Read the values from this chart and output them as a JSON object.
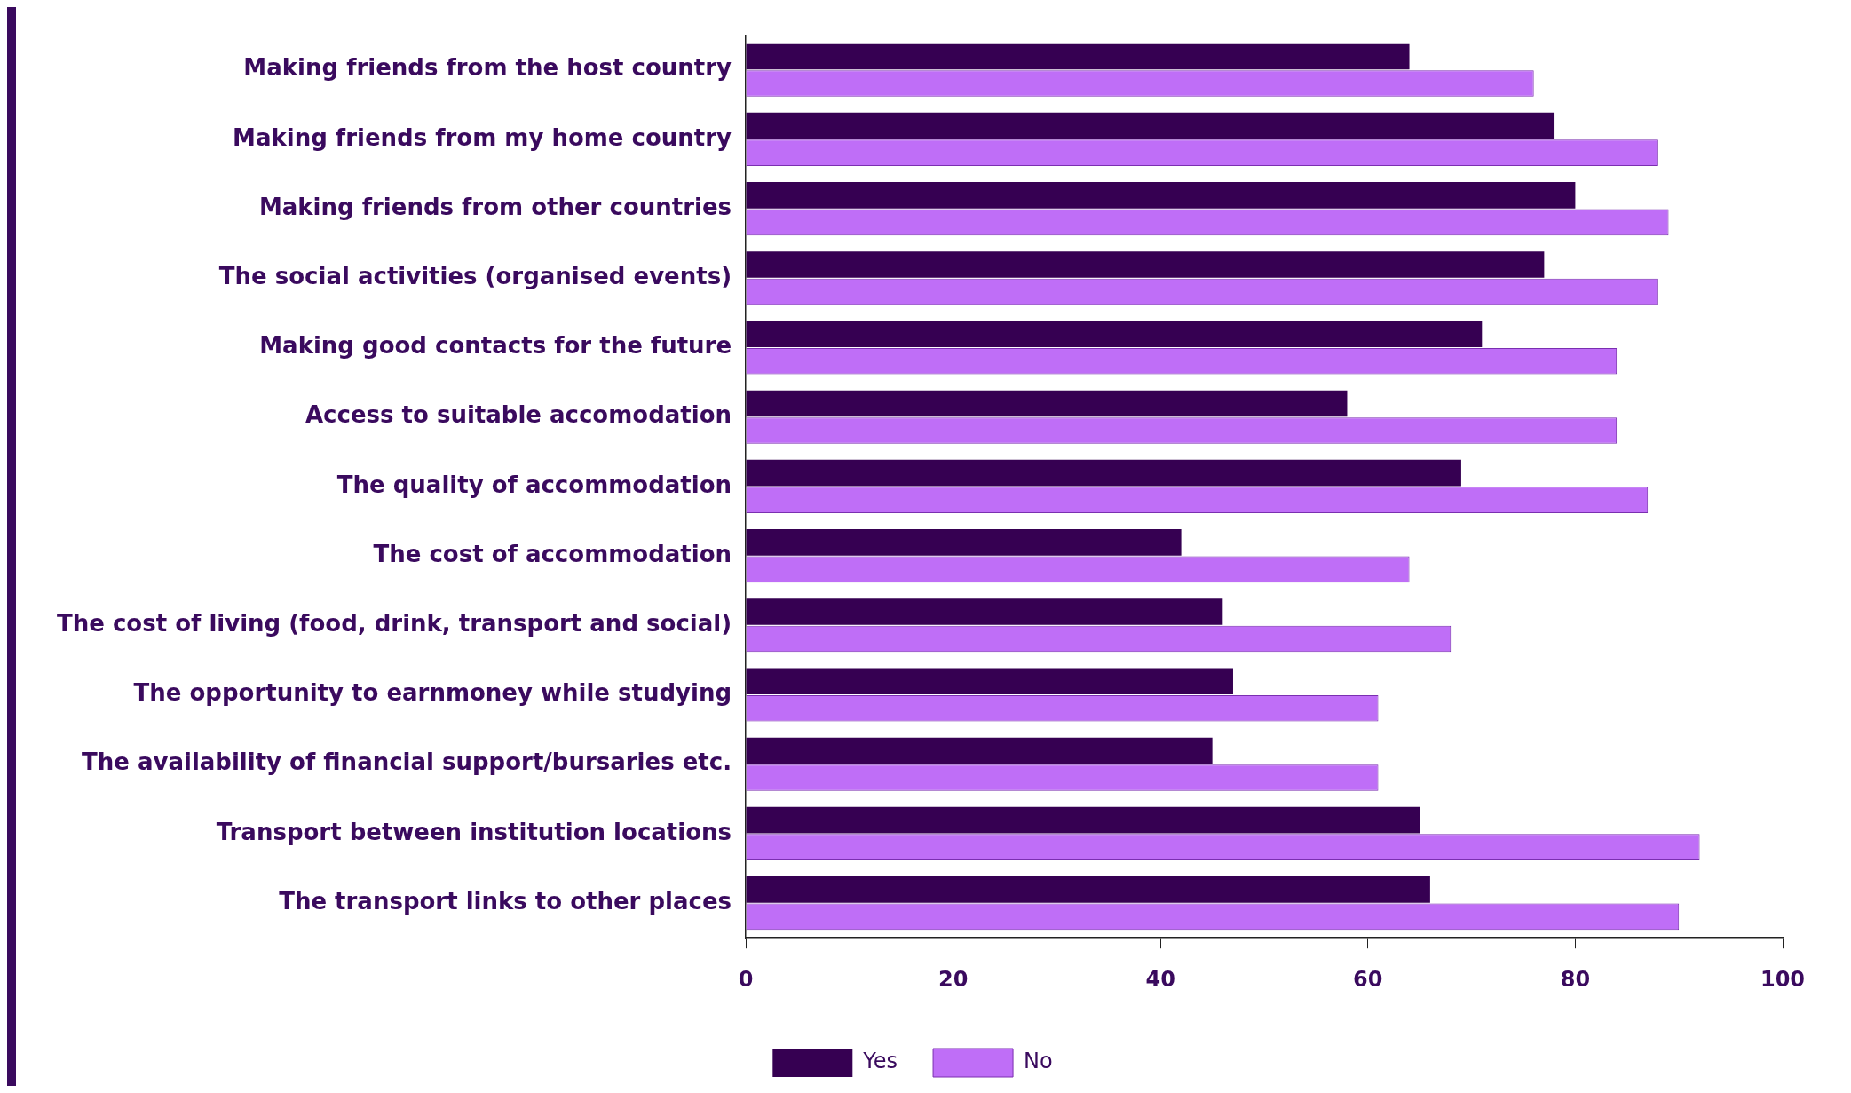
{
  "chart_data": {
    "type": "bar",
    "orientation": "horizontal",
    "categories": [
      "Making friends from the host country",
      "Making friends from my home country",
      "Making friends from other countries",
      "The social activities (organised events)",
      "Making good contacts for the future",
      "Access to suitable accomodation",
      "The quality of accommodation",
      "The cost of accommodation",
      "The cost of living (food, drink, transport and social)",
      "The opportunity to earnmoney while studying",
      "The availability of financial support/bursaries etc.",
      "Transport between institution locations",
      "The transport links to other places"
    ],
    "series": [
      {
        "name": "Yes",
        "color": "#360052",
        "values": [
          64,
          78,
          80,
          77,
          71,
          58,
          69,
          42,
          46,
          47,
          45,
          65,
          66
        ]
      },
      {
        "name": "No",
        "color": "#bf6ef7",
        "values": [
          76,
          88,
          89,
          88,
          84,
          84,
          87,
          64,
          68,
          61,
          61,
          92,
          90
        ]
      }
    ],
    "xlim": [
      0,
      100
    ],
    "xticks": [
      0,
      20,
      40,
      60,
      80,
      100
    ],
    "grid": false,
    "legend": "bottom"
  }
}
